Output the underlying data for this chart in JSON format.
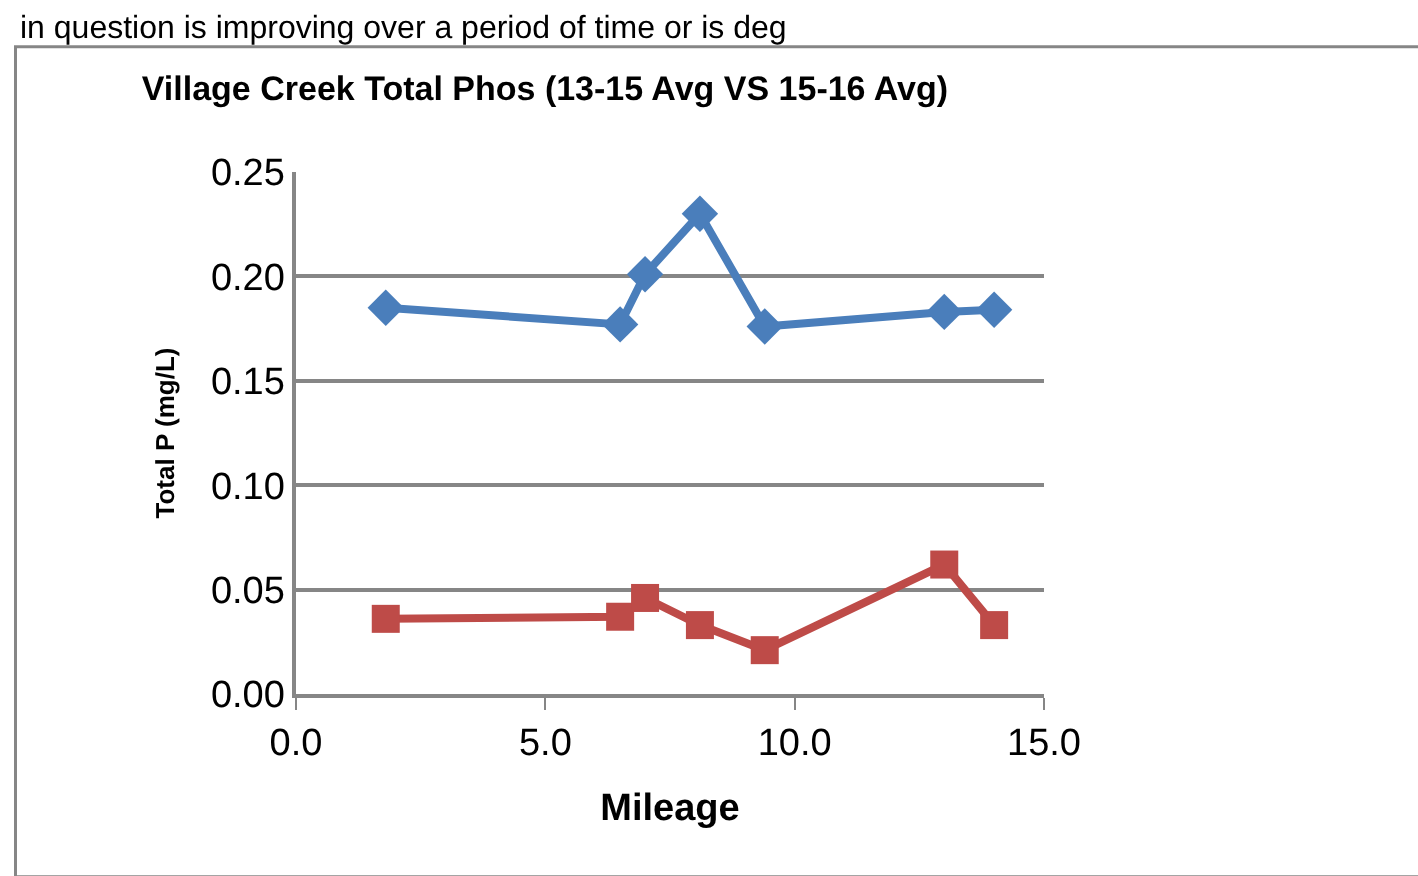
{
  "chart_data": {
    "type": "line",
    "title": "Village Creek Total Phos (13-15 Avg VS 15-16 Avg)",
    "xlabel": "Mileage",
    "ylabel": "Total P (mg/L)",
    "annotations": [
      "in question is improving over a period of time or is deg"
    ],
    "x": [
      1.8,
      6.5,
      7.0,
      8.1,
      9.4,
      13.0,
      14.0
    ],
    "series": [
      {
        "color": "#4a7ebb",
        "marker": "diamond",
        "values": [
          0.185,
          0.177,
          0.201,
          0.23,
          0.176,
          0.183,
          0.184
        ]
      },
      {
        "color": "#be4b48",
        "marker": "square",
        "values": [
          0.036,
          0.037,
          0.046,
          0.033,
          0.021,
          0.062,
          0.033
        ]
      }
    ],
    "xlim": [
      0,
      15
    ],
    "xticks": [
      {
        "value": 0,
        "label": "0.0"
      },
      {
        "value": 5,
        "label": "5.0"
      },
      {
        "value": 10,
        "label": "10.0"
      },
      {
        "value": 15,
        "label": "15.0"
      }
    ],
    "ylim": [
      0,
      0.25
    ],
    "yticks": [
      {
        "value": 0,
        "label": "0.00"
      },
      {
        "value": 0.05,
        "label": "0.05"
      },
      {
        "value": 0.1,
        "label": "0.10"
      },
      {
        "value": 0.15,
        "label": "0.15"
      },
      {
        "value": 0.2,
        "label": "0.20"
      },
      {
        "value": 0.25,
        "label": "0.25"
      }
    ],
    "grid": "y"
  }
}
